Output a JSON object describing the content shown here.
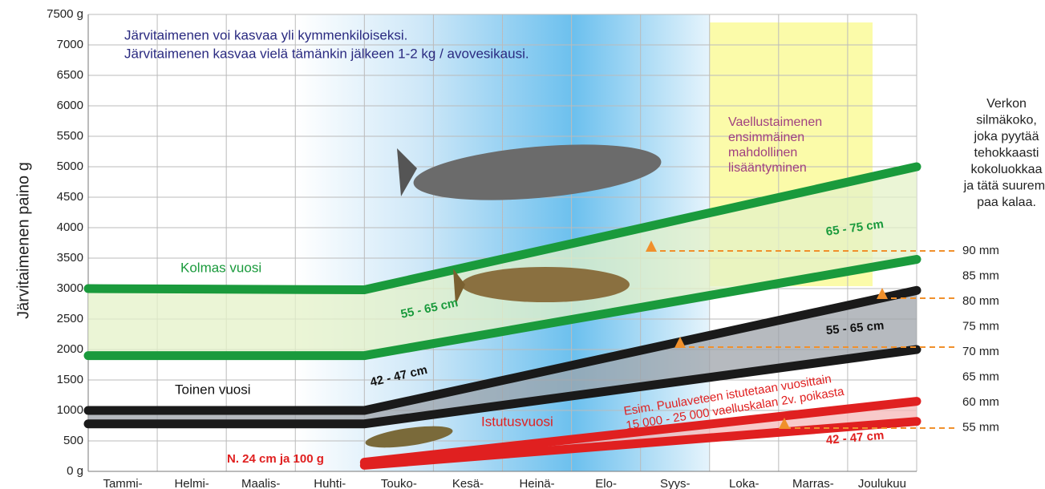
{
  "chart_data": {
    "type": "line",
    "y_label": "Järvitaimenen paino g",
    "categories": [
      "Tammi-",
      "Helmi-",
      "Maalis-",
      "Huhti-",
      "Touko-",
      "Kesä-",
      "Heinä-",
      "Elo-",
      "Syys-",
      "Loka-",
      "Marras-",
      "Joulukuu"
    ],
    "ylim": [
      0,
      7500
    ],
    "yticks": [
      {
        "value": 0,
        "label": "0 g"
      },
      {
        "value": 500,
        "label": "500"
      },
      {
        "value": 1000,
        "label": "1000"
      },
      {
        "value": 1500,
        "label": "1500"
      },
      {
        "value": 2000,
        "label": "2000"
      },
      {
        "value": 2500,
        "label": "2500"
      },
      {
        "value": 3000,
        "label": "3000"
      },
      {
        "value": 3500,
        "label": "3500"
      },
      {
        "value": 4000,
        "label": "4000"
      },
      {
        "value": 4500,
        "label": "4500"
      },
      {
        "value": 5000,
        "label": "5000"
      },
      {
        "value": 5500,
        "label": "5500"
      },
      {
        "value": 6000,
        "label": "6000"
      },
      {
        "value": 6500,
        "label": "6500"
      },
      {
        "value": 7000,
        "label": "7000"
      },
      {
        "value": 7500,
        "label": "7500 g"
      }
    ],
    "grid": true,
    "series": [
      {
        "name": "Kolmas vuosi",
        "color": "#1a9a3c",
        "x": [
          0,
          4,
          12
        ],
        "values": [
          3000,
          2980,
          5000
        ]
      },
      {
        "color": "#1a9a3c",
        "x": [
          0,
          4,
          12
        ],
        "values": [
          1900,
          1900,
          3480
        ]
      },
      {
        "name": "Toinen vuosi",
        "color": "#1a1a1a",
        "x": [
          0,
          4,
          12
        ],
        "values": [
          1000,
          1000,
          2970
        ]
      },
      {
        "color": "#1a1a1a",
        "x": [
          0,
          4,
          12
        ],
        "values": [
          780,
          780,
          2000
        ]
      },
      {
        "name": "Istutusvuosi",
        "color": "#e02020",
        "x": [
          4,
          12
        ],
        "values": [
          150,
          1150
        ]
      },
      {
        "color": "#e02020",
        "x": [
          4,
          12
        ],
        "values": [
          100,
          820
        ]
      }
    ],
    "notes": [
      "Järvitaimenen voi kasvaa yli kymmenkiloiseksi.",
      "Järvitaimenen kasvaa vielä tämänkin jälkeen 1-2 kg / avovesikausi."
    ],
    "annotations": [
      "55 - 65 cm",
      "65 - 75 cm",
      "42 - 47 cm",
      "55 - 65 cm",
      "42 - 47 cm",
      "N. 24 cm ja 100 g"
    ],
    "spawning_note": [
      "Vaellustaimenen",
      "ensimmäinen",
      "mahdollinen",
      "lisääntyminen"
    ],
    "stocking_note": [
      "Esim. Puulaveteen istutetaan vuosittain",
      "15 000 - 25 000 vaelluskalan 2v. poikasta"
    ],
    "mesh_title": [
      "Verkon",
      "silmäkoko,",
      "joka pyytää",
      "tehokkaasti",
      "kokoluokkaa",
      "ja tätä suurem-",
      "paa kalaa."
    ],
    "mesh_sizes": [
      "90 mm",
      "85 mm",
      "80 mm",
      "75 mm",
      "70 mm",
      "65 mm",
      "60 mm",
      "55 mm"
    ]
  }
}
